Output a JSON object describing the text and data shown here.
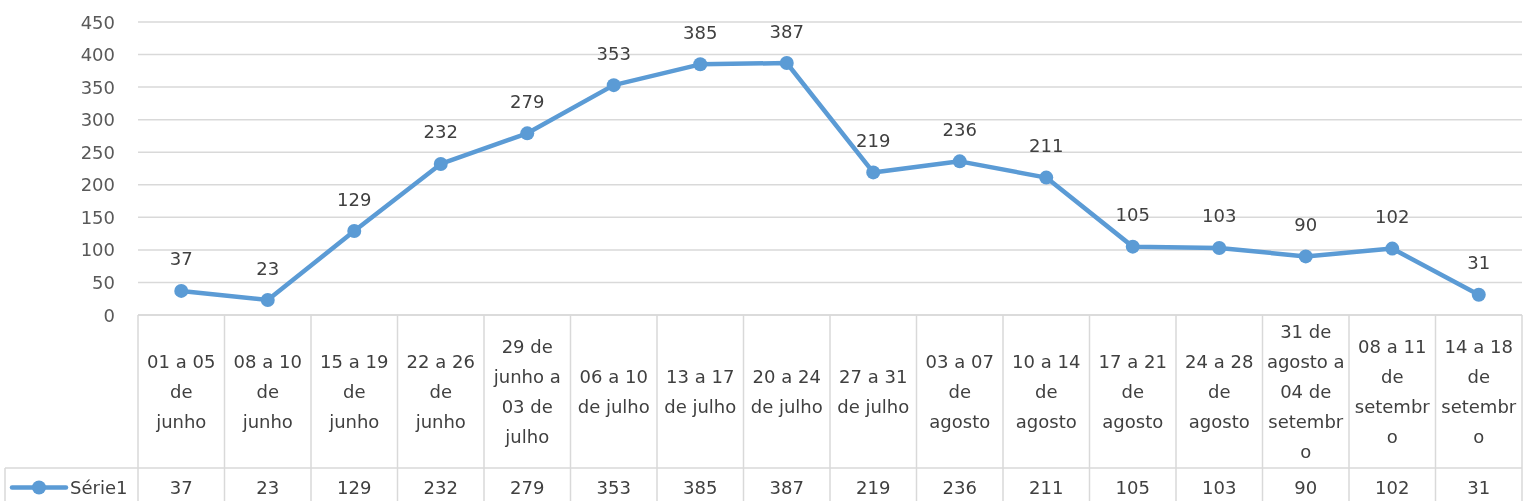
{
  "chart_data": {
    "type": "line",
    "categories": [
      "01 a 05 de junho",
      "08 a 10 de junho",
      "15 a 19 de junho",
      "22 a 26 de junho",
      "29 de junho a 03 de julho",
      "06 a 10 de julho",
      "13 a 17 de julho",
      "20 a 24 de julho",
      "27 a 31 de julho",
      "03 a 07 de agosto",
      "10 a 14 de agosto",
      "17 a 21 de agosto",
      "24 a 28 de agosto",
      "31 de agosto a 04 de setembro",
      "08 a 11 de setembro",
      "14 a 18 de setembro"
    ],
    "series": [
      {
        "name": "Série1",
        "color": "#5b9bd5",
        "values": [
          37,
          23,
          129,
          232,
          279,
          353,
          385,
          387,
          219,
          236,
          211,
          105,
          103,
          90,
          102,
          31
        ]
      }
    ],
    "ylim": [
      0,
      450
    ],
    "yticks": [
      0,
      50,
      100,
      150,
      200,
      250,
      300,
      350,
      400,
      450
    ],
    "grid": "y",
    "legend": "bottom left",
    "marker": "circle",
    "line_style": "solid",
    "data_labels": true,
    "annotations": [
      {
        "text": "37",
        "x": "01 a 05 de junho",
        "y": 37
      },
      {
        "text": "23",
        "x": "08 a 10 de junho",
        "y": 23
      },
      {
        "text": "129",
        "x": "15 a 19 de junho",
        "y": 129
      },
      {
        "text": "232",
        "x": "22 a 26 de junho",
        "y": 232
      },
      {
        "text": "279",
        "x": "29 de junho a 03 de julho",
        "y": 279
      },
      {
        "text": "353",
        "x": "06 a 10 de julho",
        "y": 353
      },
      {
        "text": "385",
        "x": "13 a 17 de julho",
        "y": 385
      },
      {
        "text": "387",
        "x": "20 a 24 de julho",
        "y": 387
      },
      {
        "text": "219",
        "x": "27 a 31 de julho",
        "y": 219
      },
      {
        "text": "236",
        "x": "03 a 07 de agosto",
        "y": 236
      },
      {
        "text": "211",
        "x": "10 a 14 de agosto",
        "y": 211
      },
      {
        "text": "105",
        "x": "17 a 21 de agosto",
        "y": 105
      },
      {
        "text": "103",
        "x": "24 a 28 de agosto",
        "y": 103
      },
      {
        "text": "90",
        "x": "31 de agosto a 04 de setembro",
        "y": 90
      },
      {
        "text": "102",
        "x": "08 a 11 de setembro",
        "y": 102
      },
      {
        "text": "31",
        "x": "14 a 18 de setembro",
        "y": 31
      }
    ]
  }
}
